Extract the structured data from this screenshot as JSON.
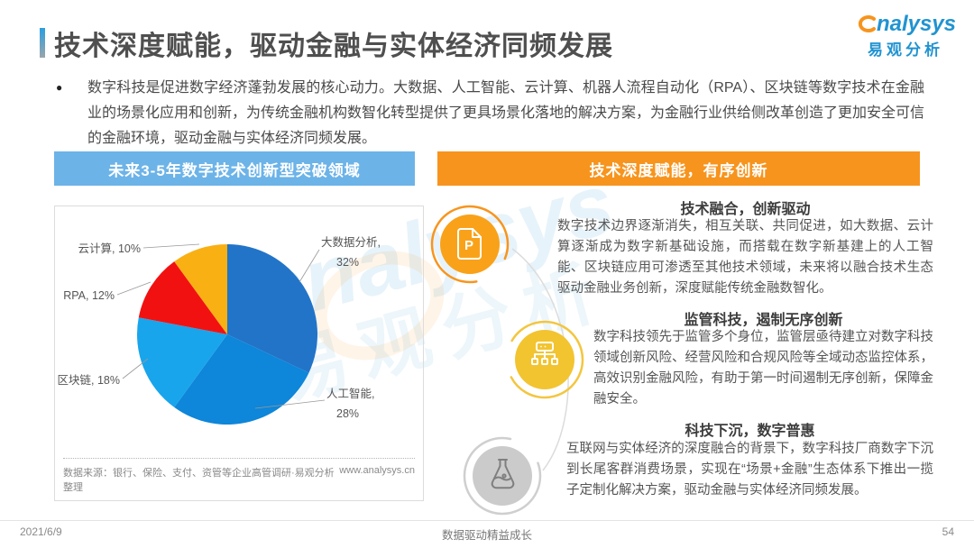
{
  "page": {
    "title": "技术深度赋能，驱动金融与实体经济同频发展",
    "intro": "数字科技是促进数字经济蓬勃发展的核心动力。大数据、人工智能、云计算、机器人流程自动化（RPA）、区块链等数字技术在金融业的场景化应用和创新，为传统金融机构数智化转型提供了更具场景化落地的解决方案，为金融行业供给侧改革创造了更加安全可信的金融环境，驱动金融与实体经济同频发展。",
    "footer": {
      "date": "2021/6/9",
      "center": "数据驱动精益成长",
      "page_number": "54"
    }
  },
  "logo": {
    "brand_first_letter": "a",
    "brand_rest": "nalysys",
    "brand_cn": "易观分析"
  },
  "watermark": {
    "line1": "analysys",
    "line2": "易观分析"
  },
  "left_panel": {
    "header": "未来3-5年数字技术创新型突破领域",
    "header_color": "#6CB3E8",
    "source": "数据来源：银行、保险、支付、资管等企业高管调研·易观分析整理",
    "website": "www.analysys.cn"
  },
  "right_panel": {
    "header": "技术深度赋能，有序创新",
    "header_color": "#F7941D",
    "sections": [
      {
        "icon": "document-p-icon",
        "title": "技术融合，创新驱动",
        "body": "数字技术边界逐渐消失，相互关联、共同促进，如大数据、云计算逐渐成为数字新基础设施，而搭载在数字新基建上的人工智能、区块链应用可渗透至其他技术领域，未来将以融合技术生态驱动金融业务创新，深度赋能传统金融数智化。"
      },
      {
        "icon": "flowchart-icon",
        "title": "监管科技，遏制无序创新",
        "body": "数字科技领先于监管多个身位，监管层亟待建立对数字科技领域创新风险、经营风险和合规风险等全域动态监控体系，高效识别金融风险，有助于第一时间遏制无序创新，保障金融安全。"
      },
      {
        "icon": "flask-icon",
        "title": "科技下沉，数字普惠",
        "body": "互联网与实体经济的深度融合的背景下，数字科技厂商数字下沉到长尾客群消费场景，实现在“场景+金融”生态体系下推出一揽子定制化解决方案，驱动金融与实体经济同频发展。"
      }
    ]
  },
  "chart_data": {
    "type": "pie",
    "title": "未来3-5年数字技术创新型突破领域",
    "labels": [
      "大数据分析",
      "人工智能",
      "区块链",
      "RPA",
      "云计算"
    ],
    "values": [
      32,
      28,
      18,
      12,
      10
    ],
    "colors": [
      "#2274C8",
      "#0E86D9",
      "#18A5EC",
      "#F21111",
      "#F9B013"
    ],
    "start_angle": "top",
    "direction": "clockwise",
    "legend": "none",
    "source": "数据来源：银行、保险、支付、资管等企业高管调研·易观分析整理",
    "website": "www.analysys.cn"
  }
}
